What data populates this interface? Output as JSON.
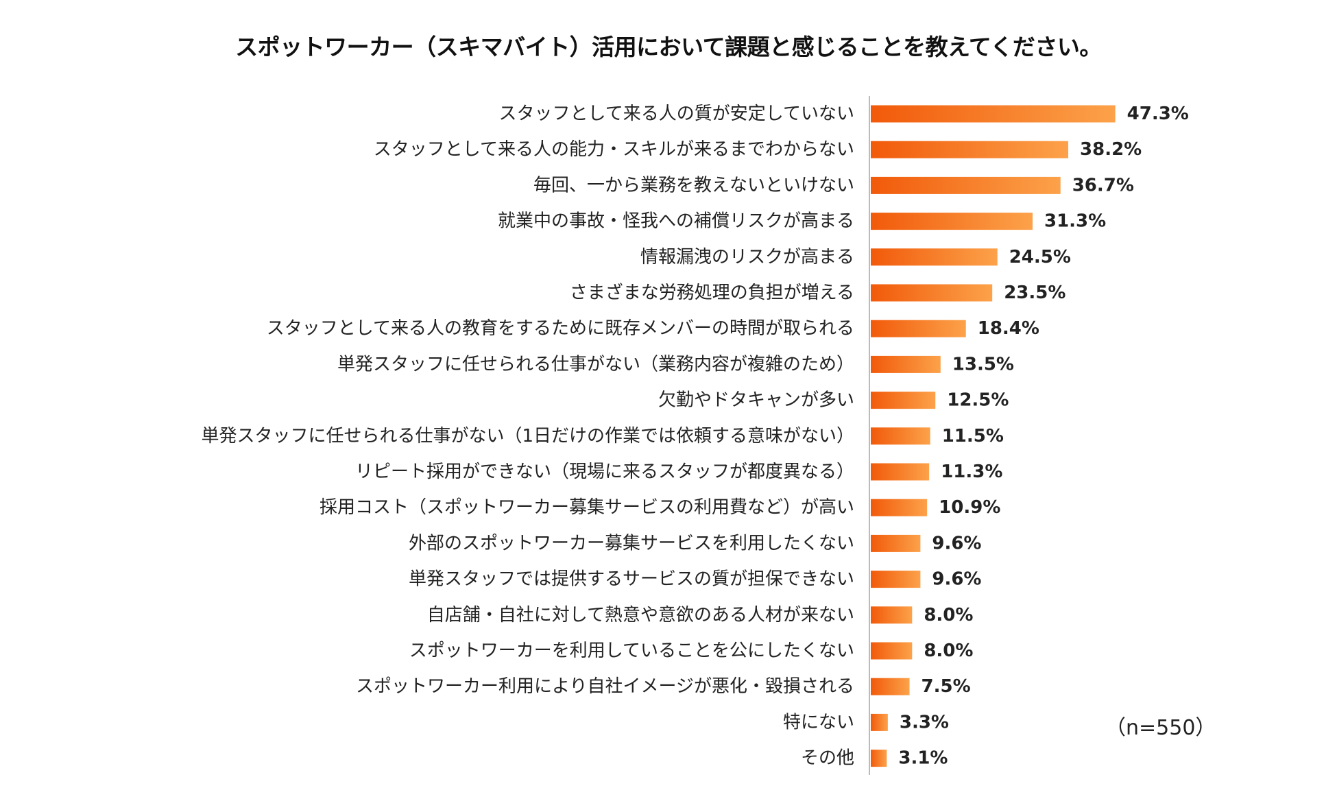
{
  "chart_data": {
    "type": "bar",
    "orientation": "horizontal",
    "title": "スポットワーカー（スキマバイト）活用において課題と感じることを教えてください。",
    "categories": [
      "スタッフとして来る人の質が安定していない",
      "スタッフとして来る人の能力・スキルが来るまでわからない",
      "毎回、一から業務を教えないといけない",
      "就業中の事故・怪我への補償リスクが高まる",
      "情報漏洩のリスクが高まる",
      "さまざまな労務処理の負担が増える",
      "スタッフとして来る人の教育をするために既存メンバーの時間が取られる",
      "単発スタッフに任せられる仕事がない（業務内容が複雑のため）",
      "欠勤やドタキャンが多い",
      "単発スタッフに任せられる仕事がない（1日だけの作業では依頼する意味がない）",
      "リピート採用ができない（現場に来るスタッフが都度異なる）",
      "採用コスト（スポットワーカー募集サービスの利用費など）が高い",
      "外部のスポットワーカー募集サービスを利用したくない",
      "単発スタッフでは提供するサービスの質が担保できない",
      "自店舗・自社に対して熱意や意欲のある人材が来ない",
      "スポットワーカーを利用していることを公にしたくない",
      "スポットワーカー利用により自社イメージが悪化・毀損される",
      "特にない",
      "その他"
    ],
    "values": [
      47.3,
      38.2,
      36.7,
      31.3,
      24.5,
      23.5,
      18.4,
      13.5,
      12.5,
      11.5,
      11.3,
      10.9,
      9.6,
      9.6,
      8.0,
      8.0,
      7.5,
      3.3,
      3.1
    ],
    "value_labels": [
      "47.3%",
      "38.2%",
      "36.7%",
      "31.3%",
      "24.5%",
      "23.5%",
      "18.4%",
      "13.5%",
      "12.5%",
      "11.5%",
      "11.3%",
      "10.9%",
      "9.6%",
      "9.6%",
      "8.0%",
      "8.0%",
      "7.5%",
      "3.3%",
      "3.1%"
    ],
    "unit": "%",
    "xlim": [
      0,
      50
    ],
    "grid": false,
    "legend": "none",
    "note": "（n=550）",
    "colors": {
      "bar_left": "#f15a0a",
      "bar_right": "#fca24a",
      "axis": "#bbbbbb",
      "text": "#222222"
    }
  }
}
